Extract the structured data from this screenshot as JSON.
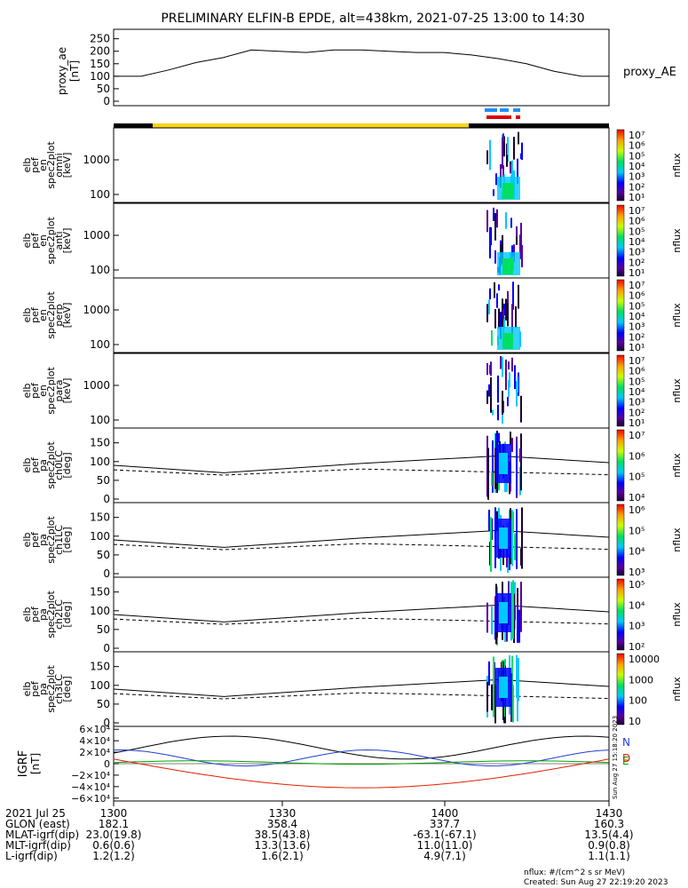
{
  "title": "PRELIMINARY ELFIN-B EPDE, alt=438km, 2021-07-25 13:00 to 14:30",
  "colors": {
    "ae_line": "#000000",
    "bar_black": "#000000",
    "bar_yellow": "#f7d617",
    "bar_blue": "#1e90ff",
    "bar_red": "#e00000",
    "igrf_N": "#2040d0",
    "igrf_E": "#00a000",
    "igrf_D": "#e02000",
    "igrf_total": "#000000"
  },
  "chart_data": [
    {
      "type": "line",
      "panel": "proxy_ae",
      "ylabel": [
        "proxy_ae",
        "[nT]"
      ],
      "legend": "proxy_AE",
      "yticks": [
        "250",
        "200",
        "150",
        "100",
        "50",
        "0"
      ],
      "ylim": [
        0,
        270
      ],
      "x_minutes": [
        0,
        10,
        20,
        30,
        40,
        50,
        60,
        70,
        80,
        90
      ],
      "x": [
        0,
        5,
        10,
        15,
        20,
        25,
        30,
        35,
        40,
        45,
        50,
        55,
        60,
        65,
        70,
        75,
        80,
        85,
        90
      ],
      "y": [
        100,
        100,
        125,
        155,
        175,
        205,
        200,
        195,
        205,
        205,
        200,
        195,
        195,
        185,
        170,
        150,
        120,
        100,
        100
      ]
    },
    {
      "type": "heatmap",
      "panel": "spec2plot_omni",
      "ylabel": [
        "elb",
        "pef",
        "en",
        "spec2plot",
        "omni",
        "[keV]"
      ],
      "yticks": [
        "1000",
        "100"
      ],
      "colorbar_ticks": [
        "10⁷",
        "10⁶",
        "10⁵",
        "10⁴",
        "10³",
        "10²",
        "10¹"
      ],
      "colorbar_label": "nflux"
    },
    {
      "type": "heatmap",
      "panel": "spec2plot_anti",
      "ylabel": [
        "elb",
        "pef",
        "en",
        "spec2plot",
        "anti",
        "[keV]"
      ],
      "yticks": [
        "1000",
        "100"
      ],
      "colorbar_ticks": [
        "10⁷",
        "10⁶",
        "10⁵",
        "10⁴",
        "10³",
        "10²",
        "10¹"
      ],
      "colorbar_label": "nflux"
    },
    {
      "type": "heatmap",
      "panel": "spec2plot_perp",
      "ylabel": [
        "elb",
        "pef",
        "en",
        "spec2plot",
        "perp",
        "[keV]"
      ],
      "yticks": [
        "1000",
        "100"
      ],
      "colorbar_ticks": [
        "10⁷",
        "10⁶",
        "10⁵",
        "10⁴",
        "10³",
        "10²",
        "10¹"
      ],
      "colorbar_label": "nflux"
    },
    {
      "type": "heatmap",
      "panel": "spec2plot_para",
      "ylabel": [
        "elb",
        "pef",
        "en",
        "spec2plot",
        "para",
        "[keV]"
      ],
      "yticks": [
        "1000",
        "100"
      ],
      "colorbar_ticks": [
        "10⁷",
        "10⁶",
        "10⁵",
        "10⁴",
        "10³",
        "10²",
        "10¹"
      ],
      "colorbar_label": "nflux"
    },
    {
      "type": "heatmap",
      "panel": "spec2plot_ch0LC",
      "ylabel": [
        "elb",
        "pef",
        "pa",
        "spec2plot",
        "ch0LC",
        "[deg]"
      ],
      "yticks": [
        "150",
        "100",
        "50",
        "0"
      ],
      "ylim": [
        0,
        180
      ],
      "colorbar_ticks": [
        "10⁷",
        "10⁶",
        "10⁵",
        "10⁴"
      ],
      "colorbar_label": "nflux"
    },
    {
      "type": "heatmap",
      "panel": "spec2plot_ch1LC",
      "ylabel": [
        "elb",
        "pef",
        "pa",
        "spec2plot",
        "ch1LC",
        "[deg]"
      ],
      "yticks": [
        "150",
        "100",
        "50",
        "0"
      ],
      "ylim": [
        0,
        180
      ],
      "colorbar_ticks": [
        "10⁶",
        "10⁵",
        "10⁴",
        "10³"
      ],
      "colorbar_label": "nflux"
    },
    {
      "type": "heatmap",
      "panel": "spec2plot_ch2LC",
      "ylabel": [
        "elb",
        "pef",
        "pa",
        "spec2plot",
        "ch2LC",
        "[deg]"
      ],
      "yticks": [
        "150",
        "100",
        "50",
        "0"
      ],
      "ylim": [
        0,
        180
      ],
      "colorbar_ticks": [
        "10⁵",
        "10⁴",
        "10³",
        "10²"
      ],
      "colorbar_label": "nflux"
    },
    {
      "type": "heatmap",
      "panel": "spec2plot_ch3LC",
      "ylabel": [
        "elb",
        "pef",
        "pa",
        "spec2plot",
        "ch3LC",
        "[deg]"
      ],
      "yticks": [
        "150",
        "100",
        "50",
        "0"
      ],
      "ylim": [
        0,
        180
      ],
      "colorbar_ticks": [
        "10000",
        "1000",
        "100",
        "10"
      ],
      "colorbar_label": "nflux"
    },
    {
      "type": "line",
      "panel": "IGRF",
      "ylabel": [
        "IGRF",
        "[nT]"
      ],
      "yticks": [
        "6×10⁴",
        "4×10⁴",
        "2×10⁴",
        "0",
        "−2×10⁴",
        "−4×10⁴",
        "−6×10⁴"
      ],
      "ylim": [
        -65000,
        65000
      ],
      "legend": [
        "N",
        "E",
        "D"
      ],
      "side_note": "Sun Aug 27 15:18:20 2023"
    }
  ],
  "footer": {
    "rows": [
      {
        "label": "2021 Jul 25",
        "values": [
          "1300",
          "1330",
          "1400",
          "1430"
        ]
      },
      {
        "label": "GLON (east)",
        "values": [
          "182.1",
          "358.4",
          "337.7",
          "160.3"
        ]
      },
      {
        "label": "MLAT-igrf(dip)",
        "values": [
          "23.0(19.8)",
          "38.5(43.8)",
          "-63.1(-67.1)",
          "13.5(4.4)"
        ]
      },
      {
        "label": "MLT-igrf(dip)",
        "values": [
          "0.6(0.6)",
          "13.3(13.6)",
          "11.0(11.0)",
          "0.9(0.8)"
        ]
      },
      {
        "label": "L-igrf(dip)",
        "values": [
          "1.2(1.2)",
          "1.6(2.1)",
          "4.9(7.1)",
          "1.1(1.1)"
        ]
      }
    ],
    "unit_note": "nflux: #/(cm^2 s sr MeV)",
    "created": "Created: Sun Aug 27 22:19:20 2023"
  }
}
